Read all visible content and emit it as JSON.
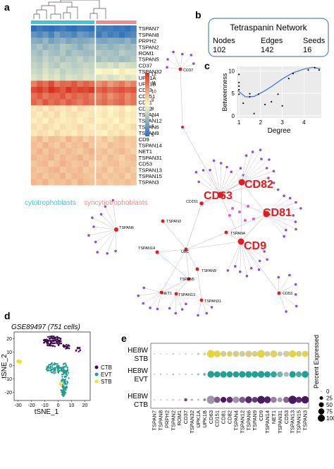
{
  "panels": {
    "a": "a",
    "b": "b",
    "c": "c",
    "d": "d",
    "e": "e"
  },
  "heatmap": {
    "rows": [
      "TSPAN7",
      "TSPAN8",
      "PRPH2",
      "TSPAN2",
      "ROM1",
      "TSPAN5",
      "CD37",
      "TSPAN32",
      "UPK1A",
      "UPK1B",
      "CD63",
      "CD151",
      "CD81",
      "CD82",
      "TSPAN4",
      "TSPAN12",
      "TSPAN6",
      "TSPAN9",
      "CD9",
      "TSPAN14",
      "NET1",
      "TSPAN31",
      "CD53",
      "TSPAN13",
      "TSPAN15",
      "TSPAN3"
    ],
    "values": [
      [
        4.5,
        4.8,
        4.6,
        4.4,
        4.7,
        4.9,
        4.6,
        4.5,
        4.8,
        4.7,
        4.6,
        5.0,
        4.8,
        4.9,
        4.7,
        4.8,
        4.6,
        4.9
      ],
      [
        5.5,
        5.2,
        5.6,
        5.0,
        5.8,
        5.3,
        5.4,
        5.1,
        5.7,
        5.5,
        5.2,
        4.8,
        5.3,
        4.9,
        5.1,
        4.7,
        5.0,
        5.2
      ],
      [
        6.2,
        6.0,
        6.4,
        5.8,
        6.1,
        6.3,
        5.9,
        6.2,
        6.0,
        6.1,
        6.3,
        6.0,
        5.9,
        6.2,
        6.1,
        6.0,
        6.3,
        5.8
      ],
      [
        6.5,
        6.8,
        6.3,
        6.6,
        6.4,
        6.9,
        6.7,
        6.5,
        6.2,
        6.6,
        6.8,
        6.4,
        6.6,
        6.3,
        6.5,
        6.7,
        6.4,
        6.6
      ],
      [
        6.8,
        6.5,
        7.0,
        6.7,
        6.6,
        6.9,
        6.4,
        6.8,
        6.7,
        6.5,
        6.6,
        6.9,
        6.7,
        6.8,
        6.6,
        7.0,
        6.8,
        6.7
      ],
      [
        7.0,
        6.8,
        7.2,
        6.9,
        7.1,
        6.7,
        7.0,
        6.9,
        7.2,
        6.8,
        7.0,
        6.6,
        6.9,
        6.7,
        6.8,
        6.5,
        6.7,
        6.9
      ],
      [
        7.2,
        7.0,
        7.4,
        7.1,
        6.9,
        7.3,
        7.2,
        7.0,
        7.1,
        7.3,
        7.2,
        7.5,
        7.4,
        7.6,
        7.3,
        7.7,
        7.5,
        7.4
      ],
      [
        7.4,
        7.2,
        7.6,
        7.3,
        7.5,
        7.1,
        7.4,
        7.2,
        7.3,
        7.5,
        7.4,
        8.2,
        8.5,
        8.0,
        8.3,
        8.6,
        8.1,
        8.4
      ],
      [
        7.6,
        7.4,
        7.8,
        7.5,
        7.7,
        7.3,
        7.6,
        7.5,
        7.4,
        7.7,
        7.6,
        7.6,
        7.8,
        7.5,
        7.7,
        7.9,
        7.6,
        7.8
      ],
      [
        10.5,
        11.2,
        10.8,
        11.5,
        10.6,
        11.0,
        10.9,
        11.3,
        10.7,
        11.1,
        10.8,
        10.2,
        10.6,
        10.0,
        10.4,
        10.7,
        10.1,
        10.5
      ],
      [
        11.5,
        11.8,
        11.3,
        12.0,
        11.6,
        11.2,
        11.9,
        11.4,
        11.7,
        11.5,
        11.8,
        11.0,
        11.3,
        10.9,
        11.2,
        11.4,
        11.1,
        11.3
      ],
      [
        10.8,
        11.2,
        10.6,
        11.0,
        10.9,
        11.3,
        10.7,
        11.1,
        10.8,
        11.0,
        10.6,
        10.4,
        10.8,
        10.2,
        10.6,
        10.9,
        10.3,
        10.7
      ],
      [
        11.0,
        10.6,
        11.3,
        10.8,
        11.1,
        10.7,
        11.2,
        10.9,
        10.6,
        11.0,
        10.8,
        10.6,
        10.9,
        10.5,
        10.8,
        11.0,
        10.4,
        10.7
      ],
      [
        8.6,
        8.8,
        8.5,
        8.9,
        8.7,
        8.6,
        8.8,
        8.5,
        8.9,
        8.7,
        8.6,
        8.4,
        8.6,
        8.3,
        8.5,
        8.7,
        8.2,
        8.5
      ],
      [
        8.7,
        8.5,
        8.8,
        8.6,
        8.9,
        8.5,
        8.7,
        8.8,
        8.6,
        8.5,
        8.7,
        8.5,
        8.7,
        8.4,
        8.6,
        8.8,
        8.5,
        8.6
      ],
      [
        8.5,
        8.7,
        8.4,
        8.8,
        8.6,
        8.5,
        8.6,
        8.7,
        8.4,
        8.6,
        8.8,
        8.4,
        8.5,
        8.6,
        8.3,
        8.7,
        8.4,
        8.5
      ],
      [
        8.8,
        8.6,
        8.9,
        8.7,
        8.5,
        8.8,
        8.6,
        8.7,
        8.9,
        8.6,
        8.5,
        8.6,
        8.8,
        8.5,
        8.7,
        8.4,
        8.6,
        8.9
      ],
      [
        8.6,
        8.8,
        8.7,
        8.5,
        8.9,
        8.6,
        8.7,
        8.5,
        8.8,
        8.6,
        8.7,
        8.5,
        8.4,
        8.7,
        8.6,
        8.8,
        8.5,
        8.6
      ],
      [
        9.2,
        9.5,
        9.0,
        9.4,
        9.3,
        9.1,
        9.6,
        9.2,
        9.4,
        9.0,
        9.3,
        9.0,
        9.3,
        8.9,
        9.2,
        9.4,
        9.1,
        9.2
      ],
      [
        9.4,
        9.2,
        9.6,
        9.3,
        9.1,
        9.5,
        9.2,
        9.4,
        9.3,
        9.6,
        9.2,
        9.1,
        9.0,
        9.4,
        9.2,
        9.3,
        9.0,
        9.2
      ],
      [
        9.3,
        9.6,
        9.2,
        9.5,
        9.4,
        9.2,
        9.5,
        9.3,
        9.1,
        9.4,
        9.6,
        9.2,
        9.4,
        9.1,
        9.3,
        9.5,
        9.2,
        9.0
      ],
      [
        9.5,
        9.3,
        9.4,
        9.6,
        9.2,
        9.5,
        9.3,
        9.4,
        9.6,
        9.2,
        9.4,
        9.3,
        9.1,
        9.4,
        9.2,
        9.0,
        9.3,
        9.4
      ],
      [
        9.2,
        9.4,
        9.5,
        9.1,
        9.3,
        9.6,
        9.4,
        9.2,
        9.3,
        9.5,
        9.1,
        9.0,
        9.2,
        9.3,
        9.4,
        9.1,
        9.2,
        9.3
      ],
      [
        9.4,
        9.2,
        9.3,
        9.5,
        9.6,
        9.2,
        9.4,
        9.3,
        9.5,
        9.1,
        9.3,
        9.2,
        9.4,
        9.0,
        9.3,
        9.2,
        9.4,
        9.1
      ],
      [
        9.3,
        9.5,
        9.2,
        9.4,
        9.3,
        9.6,
        9.2,
        9.5,
        9.4,
        9.3,
        9.2,
        9.4,
        9.1,
        9.3,
        9.2,
        9.4,
        9.0,
        9.3
      ],
      [
        9.5,
        9.3,
        9.6,
        9.2,
        9.4,
        9.3,
        9.5,
        9.2,
        9.6,
        9.4,
        9.3,
        9.2,
        9.4,
        9.1,
        9.3,
        9.2,
        9.4,
        9.2
      ]
    ],
    "n_cyto": 11,
    "n_syncy": 7,
    "colorbar_ticks": [
      "12",
      "11",
      "10",
      "9",
      "8",
      "7",
      "6",
      "5"
    ],
    "group_labels": {
      "cyto": "cytotrophoblasts",
      "syncy": "syncytiotrophoblasts"
    },
    "colors": {
      "cyto": "#3cc7d3",
      "syncy": "#f08a8c",
      "low": "#2c6fb8",
      "mid": "#fefbc8",
      "high": "#d7301f"
    }
  },
  "network_box": {
    "title": "Tetraspanin Network",
    "headers": [
      "Nodes",
      "Edges",
      "Seeds"
    ],
    "values": [
      "102",
      "142",
      "16"
    ],
    "border_color": "#5b83b5"
  },
  "chart_data": [
    {
      "type": "scatter",
      "panel": "c",
      "xlabel": "Degree",
      "ylabel": "Betweenness",
      "xticks": [
        "1",
        "2",
        "3",
        "4"
      ],
      "yticks": [
        "0",
        "5",
        "10"
      ],
      "xlim": [
        0.9,
        4.8
      ],
      "ylim": [
        -0.5,
        11
      ],
      "points": [
        [
          1,
          9.2
        ],
        [
          1,
          7.4
        ],
        [
          1,
          6.6
        ],
        [
          1,
          5.8
        ],
        [
          1,
          4.8
        ],
        [
          1.2,
          2.8
        ],
        [
          1.5,
          4.9
        ],
        [
          1.5,
          4.2
        ],
        [
          1.7,
          0.5
        ],
        [
          1.9,
          4.8
        ],
        [
          2.2,
          2.5
        ],
        [
          2.5,
          3.1
        ],
        [
          2.8,
          4.8
        ],
        [
          3.0,
          2.2
        ],
        [
          3.3,
          8.3
        ],
        [
          3.5,
          9.4
        ],
        [
          4.2,
          10.2
        ],
        [
          4.5,
          10.7
        ],
        [
          4.7,
          10.2
        ]
      ],
      "trend": [
        [
          0.95,
          5.6
        ],
        [
          1.3,
          4.2
        ],
        [
          1.7,
          4.3
        ],
        [
          2.1,
          5.3
        ],
        [
          2.5,
          6.5
        ],
        [
          3.0,
          8.2
        ],
        [
          3.5,
          9.6
        ],
        [
          4.0,
          10.4
        ],
        [
          4.4,
          10.8
        ],
        [
          4.75,
          10.5
        ]
      ],
      "trend_color": "#3b6ed0"
    },
    {
      "type": "scatter",
      "panel": "d",
      "title": "GSE89497  (751 cells)",
      "xlabel": "tSNE_1",
      "ylabel": "tSNE_2",
      "xticks": [
        "-30",
        "-20",
        "-10",
        "0",
        "10",
        "20"
      ],
      "yticks": [
        "20",
        "10",
        "0",
        "-10",
        "-20"
      ],
      "xlim": [
        -33,
        24
      ],
      "ylim": [
        -26,
        25
      ],
      "series": [
        {
          "name": "CTB",
          "color": "#3d0a4f"
        },
        {
          "name": "EVT",
          "color": "#239b8f"
        },
        {
          "name": "STB",
          "color": "#f2e32a"
        }
      ]
    },
    {
      "type": "scatter",
      "panel": "e",
      "categories": [
        "TSPAN7",
        "TSPAN8",
        "PRPH2",
        "TSPAN2",
        "ROM1",
        "CD37",
        "TSPAN32",
        "UPK1A",
        "UPK1B",
        "CD63",
        "CD151",
        "CD81",
        "CD82",
        "TSPAN4",
        "TSPAN12",
        "TSPAN6",
        "TSPAN9",
        "CD9",
        "TSPAN14",
        "NET1",
        "TSPAN31",
        "CD53",
        "TSPAN13",
        "TSPAN15",
        "TSPAN3"
      ],
      "rows": [
        "HE8W STB",
        "HE8W EVT",
        "HE8W CTB"
      ],
      "percent_expressed": [
        [
          2,
          2,
          2,
          4,
          2,
          3,
          2,
          6,
          8,
          70,
          55,
          40,
          35,
          45,
          40,
          50,
          40,
          70,
          35,
          60,
          30,
          45,
          60,
          40,
          45
        ],
        [
          2,
          3,
          2,
          4,
          2,
          3,
          3,
          6,
          10,
          55,
          45,
          50,
          45,
          45,
          50,
          50,
          50,
          55,
          45,
          45,
          40,
          30,
          50,
          40,
          55
        ],
        [
          2,
          2,
          2,
          3,
          2,
          12,
          4,
          4,
          8,
          80,
          45,
          40,
          45,
          50,
          45,
          55,
          40,
          70,
          55,
          45,
          30,
          45,
          80,
          45,
          65
        ]
      ],
      "avg_expression": [
        [
          0.2,
          0.2,
          0.2,
          0.4,
          0.2,
          0.3,
          0.2,
          0.4,
          0.6,
          2.0,
          1.8,
          0.9,
          1.3,
          0.8,
          0.5,
          0.9,
          0.8,
          1.9,
          0.5,
          1.4,
          0.3,
          0.6,
          2.0,
          1.2,
          1.7
        ],
        [
          0.2,
          0.3,
          0.2,
          0.4,
          0.2,
          0.3,
          0.3,
          0.3,
          0.8,
          2.0,
          2.0,
          2.0,
          2.0,
          2.0,
          2.0,
          2.0,
          2.0,
          2.0,
          2.0,
          1.8,
          1.0,
          0.5,
          2.0,
          1.5,
          2.0
        ],
        [
          0.2,
          0.2,
          0.2,
          0.3,
          0.2,
          1.4,
          0.5,
          0.3,
          0.8,
          0.6,
          1.2,
          2.0,
          1.7,
          0.6,
          1.2,
          1.8,
          1.6,
          2.0,
          1.9,
          0.8,
          0.5,
          1.1,
          2.0,
          1.8,
          2.0
        ]
      ],
      "legend_title": "Percent Expressed",
      "legend_values": [
        "0",
        "25",
        "50",
        "75",
        "100"
      ],
      "row_colors": {
        "HE8W STB": "#e4d63a",
        "HE8W EVT": "#21a196",
        "HE8W CTB": "#4a1860"
      }
    }
  ],
  "network": {
    "labels": {
      "large": [
        "CD63",
        "CD82",
        "CD81",
        "CD9"
      ],
      "small": [
        "CD37",
        "CD151",
        "TSPAN6",
        "TSPAN3",
        "UBC",
        "TSPAN4",
        "TSPAN14",
        "TSPAN9",
        "TSPAN5",
        "NET1",
        "TSPAN13",
        "TSPAN31",
        "CD53"
      ]
    },
    "colors": {
      "hub": "#e31b23",
      "leaf": "#8b4fe0",
      "link": "#e05bd8",
      "edge": "#c4c4c4"
    }
  }
}
